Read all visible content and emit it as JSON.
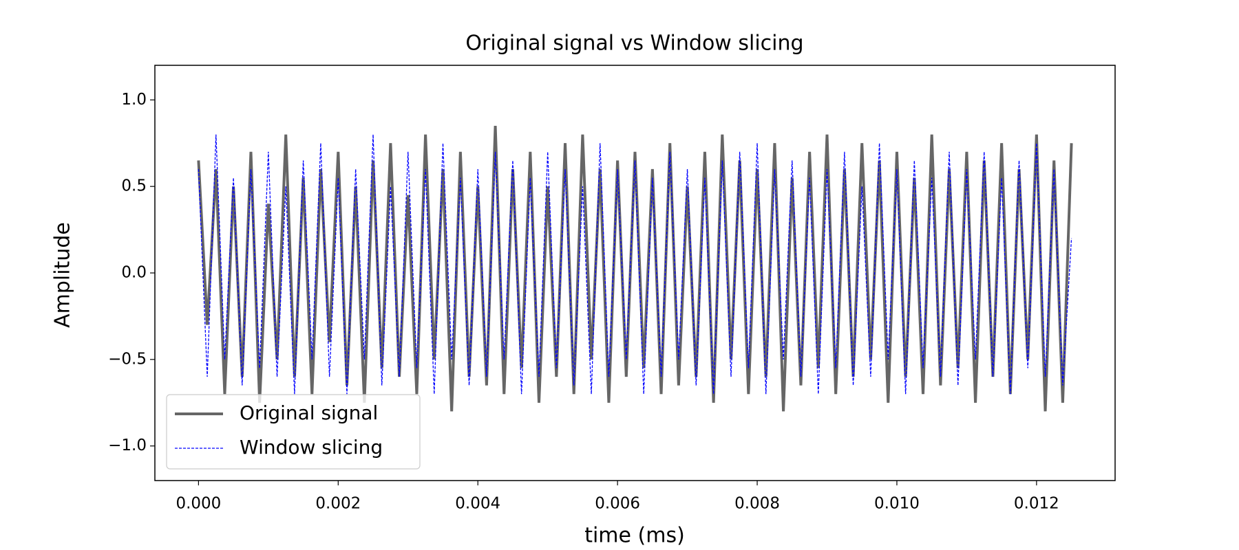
{
  "chart_data": {
    "type": "line",
    "title": "Original signal vs Window slicing",
    "x_label": "time (ms)",
    "y_label": "Amplitude",
    "x": [
      0,
      0.000125,
      0.00025,
      0.000375,
      0.0005,
      0.000625,
      0.00075,
      0.000875,
      0.001,
      0.001125,
      0.00125,
      0.001375,
      0.0015,
      0.001625,
      0.00175,
      0.001875,
      0.002,
      0.002125,
      0.00225,
      0.002375,
      0.0025,
      0.002625,
      0.00275,
      0.002875,
      0.003,
      0.003125,
      0.00325,
      0.003375,
      0.0035,
      0.003625,
      0.00375,
      0.003875,
      0.004,
      0.004125,
      0.00425,
      0.004375,
      0.0045,
      0.004625,
      0.00475,
      0.004875,
      0.005,
      0.005125,
      0.00525,
      0.005375,
      0.0055,
      0.005625,
      0.00575,
      0.005875,
      0.006,
      0.006125,
      0.00625,
      0.006375,
      0.0065,
      0.006625,
      0.00675,
      0.006875,
      0.007,
      0.007125,
      0.00725,
      0.007375,
      0.0075,
      0.007625,
      0.00775,
      0.007875,
      0.008,
      0.008125,
      0.00825,
      0.008375,
      0.0085,
      0.008625,
      0.00875,
      0.008875,
      0.009,
      0.009125,
      0.00925,
      0.009375,
      0.0095,
      0.009625,
      0.00975,
      0.009875,
      0.01,
      0.010125,
      0.01025,
      0.010375,
      0.0105,
      0.010625,
      0.01075,
      0.010875,
      0.011,
      0.011125,
      0.01125,
      0.011375,
      0.0115,
      0.011625,
      0.01175,
      0.011875,
      0.012,
      0.012125,
      0.01225,
      0.012375,
      0.0125
    ],
    "series": [
      {
        "name": "Original signal",
        "color": "#666666",
        "style": "solid",
        "values": [
          0.65,
          -0.3,
          0.6,
          -0.7,
          0.5,
          -0.6,
          0.7,
          -0.75,
          0.4,
          -0.5,
          0.8,
          -0.6,
          0.55,
          -0.7,
          0.6,
          -0.4,
          0.7,
          -0.65,
          0.5,
          -0.75,
          0.65,
          -0.55,
          0.75,
          -0.6,
          0.45,
          -0.7,
          0.8,
          -0.5,
          0.6,
          -0.8,
          0.7,
          -0.6,
          0.5,
          -0.65,
          0.85,
          -0.7,
          0.6,
          -0.55,
          0.7,
          -0.75,
          0.5,
          -0.6,
          0.75,
          -0.7,
          0.8,
          -0.5,
          0.6,
          -0.75,
          0.65,
          -0.6,
          0.7,
          -0.55,
          0.6,
          -0.7,
          0.75,
          -0.65,
          0.5,
          -0.6,
          0.7,
          -0.75,
          0.8,
          -0.5,
          0.65,
          -0.7,
          0.6,
          -0.6,
          0.75,
          -0.8,
          0.55,
          -0.65,
          0.7,
          -0.55,
          0.8,
          -0.7,
          0.6,
          -0.6,
          0.75,
          -0.5,
          0.65,
          -0.75,
          0.7,
          -0.6,
          0.55,
          -0.7,
          0.8,
          -0.65,
          0.6,
          -0.55,
          0.7,
          -0.75,
          0.65,
          -0.6,
          0.75,
          -0.7,
          0.6,
          -0.5,
          0.8,
          -0.8,
          0.65,
          -0.75,
          0.75
        ]
      },
      {
        "name": "Window slicing",
        "color": "#0000ff",
        "style": "dashed",
        "values": [
          0.6,
          -0.6,
          0.8,
          -0.5,
          0.55,
          -0.65,
          0.6,
          -0.55,
          0.7,
          -0.6,
          0.5,
          -0.7,
          0.65,
          -0.5,
          0.75,
          -0.6,
          0.55,
          -0.7,
          0.6,
          -0.5,
          0.8,
          -0.65,
          0.5,
          -0.6,
          0.7,
          -0.55,
          0.6,
          -0.7,
          0.75,
          -0.5,
          0.55,
          -0.65,
          0.6,
          -0.6,
          0.7,
          -0.5,
          0.65,
          -0.7,
          0.55,
          -0.6,
          0.7,
          -0.55,
          0.6,
          -0.65,
          0.5,
          -0.7,
          0.75,
          -0.6,
          0.6,
          -0.5,
          0.65,
          -0.7,
          0.55,
          -0.6,
          0.7,
          -0.5,
          0.6,
          -0.65,
          0.55,
          -0.7,
          0.65,
          -0.6,
          0.7,
          -0.55,
          0.75,
          -0.7,
          0.6,
          -0.5,
          0.65,
          -0.6,
          0.55,
          -0.7,
          0.6,
          -0.55,
          0.7,
          -0.65,
          0.5,
          -0.6,
          0.75,
          -0.5,
          0.6,
          -0.7,
          0.65,
          -0.55,
          0.55,
          -0.6,
          0.7,
          -0.65,
          0.6,
          -0.5,
          0.7,
          -0.6,
          0.55,
          -0.7,
          0.65,
          -0.55,
          0.75,
          -0.6,
          0.6,
          -0.65,
          0.2
        ]
      }
    ],
    "xlim": [
      -0.000625,
      0.013125
    ],
    "ylim": [
      -1.2,
      1.2
    ],
    "xticks": [
      {
        "value": 0,
        "label": "0.000"
      },
      {
        "value": 0.002,
        "label": "0.002"
      },
      {
        "value": 0.004,
        "label": "0.004"
      },
      {
        "value": 0.006,
        "label": "0.006"
      },
      {
        "value": 0.008,
        "label": "0.008"
      },
      {
        "value": 0.01,
        "label": "0.010"
      },
      {
        "value": 0.012,
        "label": "0.012"
      }
    ],
    "yticks": [
      {
        "value": -1,
        "label": "−1.0"
      },
      {
        "value": -0.5,
        "label": "−0.5"
      },
      {
        "value": 0,
        "label": "0.0"
      },
      {
        "value": 0.5,
        "label": "0.5"
      },
      {
        "value": 1,
        "label": "1.0"
      }
    ],
    "grid": false,
    "legend": "lower left"
  }
}
